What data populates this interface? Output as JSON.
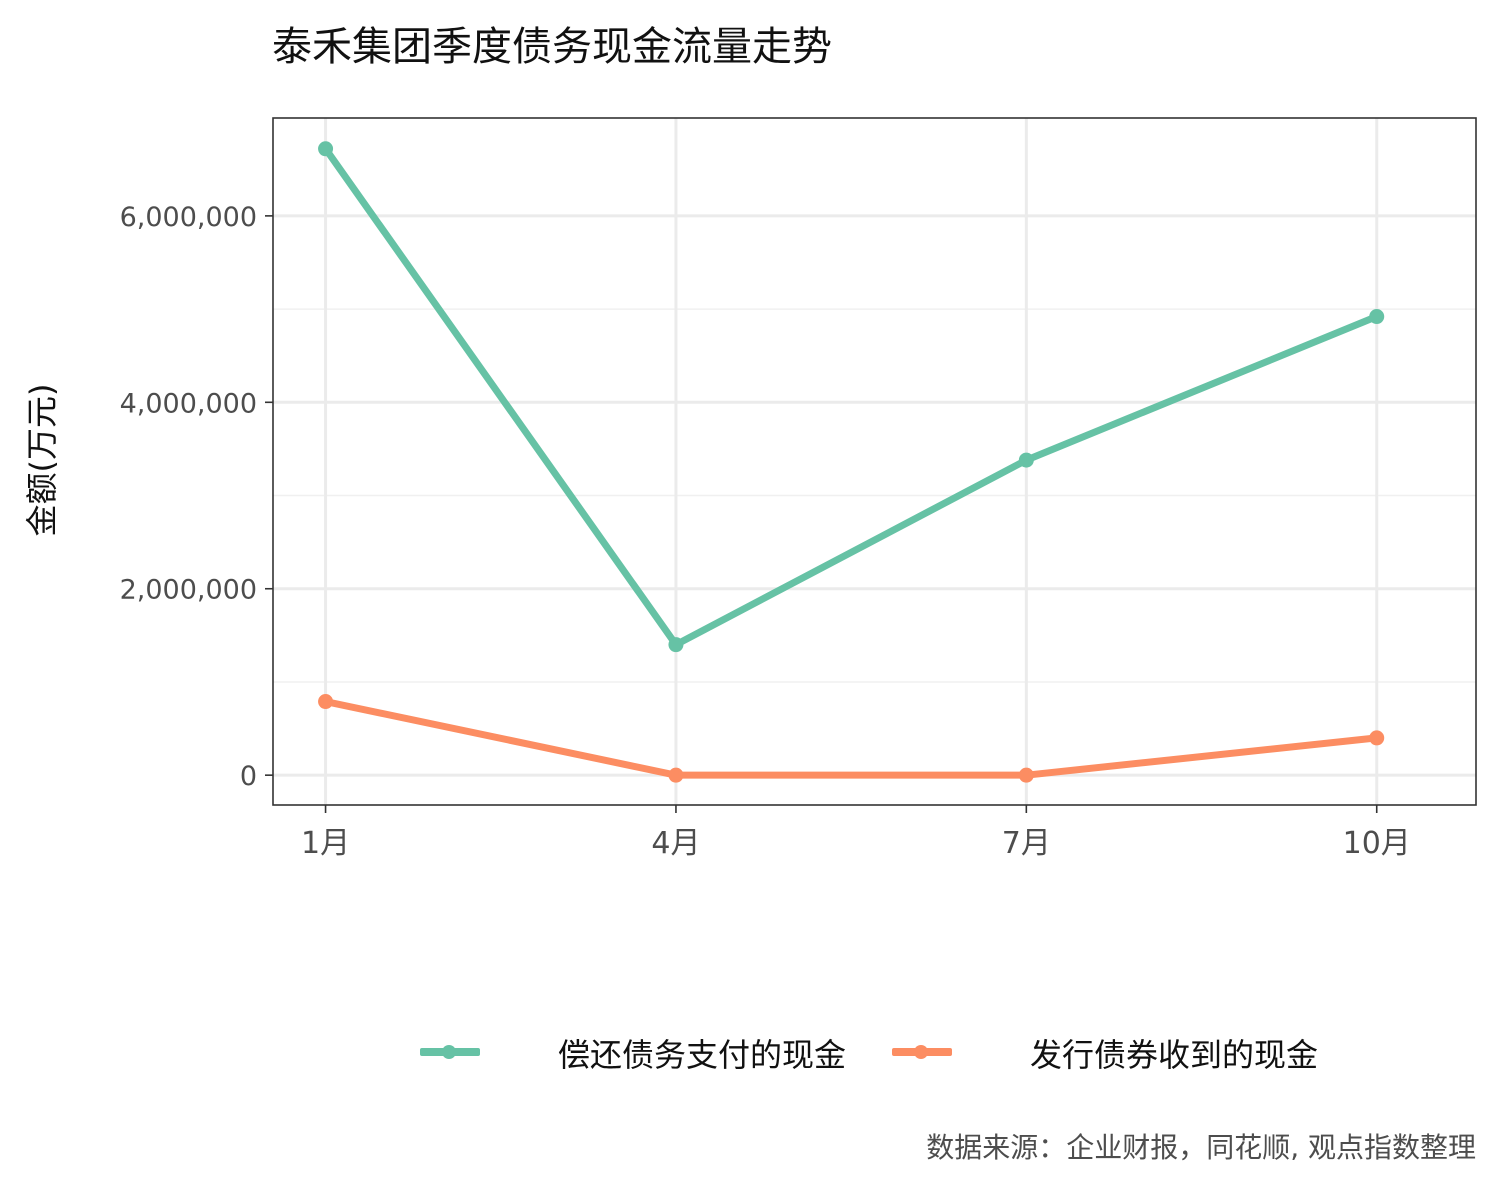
{
  "chart_data": {
    "type": "line",
    "title": "泰禾集团季度债务现金流量走势",
    "ylabel": "金额(万元)",
    "xlabel": "",
    "categories": [
      "1月",
      "4月",
      "7月",
      "10月"
    ],
    "x_months": [
      1,
      4,
      7,
      10
    ],
    "ylim": [
      -320000,
      7050000
    ],
    "y_ticks": [
      0,
      2000000,
      4000000,
      6000000
    ],
    "y_tick_labels": [
      "0",
      "2,000,000",
      "4,000,000",
      "6,000,000"
    ],
    "grid": true,
    "legend_position": "bottom",
    "series": [
      {
        "name": "偿还债务支付的现金",
        "color": "#66C2A5",
        "values": [
          6720000,
          1400000,
          3380000,
          4920000
        ]
      },
      {
        "name": "发行债券收到的现金",
        "color": "#FC8D62",
        "values": [
          790000,
          0,
          0,
          400000
        ]
      }
    ],
    "caption": "数据来源：企业财报，同花顺, 观点指数整理"
  }
}
